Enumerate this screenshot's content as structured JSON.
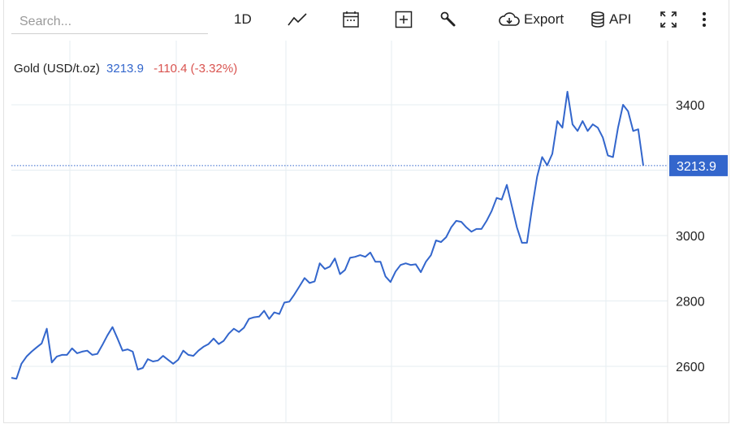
{
  "search": {
    "placeholder": "Search..."
  },
  "toolbar": {
    "interval_label": "1D",
    "export_label": "Export",
    "api_label": "API",
    "icons": [
      "line-chart-icon",
      "calendar-icon",
      "plus-box-icon",
      "wrench-icon",
      "cloud-download-icon",
      "database-icon",
      "fullscreen-icon",
      "more-vert-icon"
    ]
  },
  "legend": {
    "name": "Gold (USD/t.oz)",
    "price": "3213.9",
    "change": "-110.4 (-3.32%)"
  },
  "colors": {
    "line": "#3366cc",
    "change": "#d9534f",
    "grid": "#e6eef2"
  },
  "chart_data": {
    "type": "line",
    "title": "Gold (USD/t.oz)",
    "xlabel": "",
    "ylabel": "",
    "ylim": [
      2500,
      3450
    ],
    "yticks": [
      2600,
      2800,
      3000,
      3400
    ],
    "current_value": 3213.9,
    "current_label": "3213.9",
    "grid": true,
    "series": [
      {
        "name": "Gold (USD/t.oz)",
        "values": [
          2565,
          2562,
          2608,
          2630,
          2645,
          2658,
          2670,
          2715,
          2612,
          2630,
          2635,
          2635,
          2655,
          2640,
          2645,
          2648,
          2635,
          2638,
          2665,
          2695,
          2720,
          2685,
          2648,
          2652,
          2645,
          2590,
          2595,
          2622,
          2615,
          2618,
          2632,
          2620,
          2608,
          2620,
          2648,
          2635,
          2632,
          2648,
          2660,
          2668,
          2685,
          2668,
          2678,
          2700,
          2715,
          2705,
          2718,
          2745,
          2750,
          2752,
          2770,
          2745,
          2765,
          2760,
          2795,
          2798,
          2820,
          2845,
          2870,
          2855,
          2860,
          2915,
          2898,
          2905,
          2930,
          2882,
          2895,
          2932,
          2935,
          2940,
          2935,
          2948,
          2920,
          2920,
          2875,
          2858,
          2890,
          2910,
          2915,
          2910,
          2912,
          2888,
          2920,
          2940,
          2985,
          2980,
          2995,
          3025,
          3045,
          3042,
          3025,
          3012,
          3020,
          3020,
          3045,
          3075,
          3115,
          3110,
          3155,
          3090,
          3025,
          2978,
          2978,
          3085,
          3180,
          3240,
          3215,
          3250,
          3350,
          3330,
          3440,
          3340,
          3320,
          3350,
          3320,
          3340,
          3330,
          3300,
          3245,
          3240,
          3330,
          3400,
          3380,
          3320,
          3325,
          3213.9
        ]
      }
    ]
  }
}
